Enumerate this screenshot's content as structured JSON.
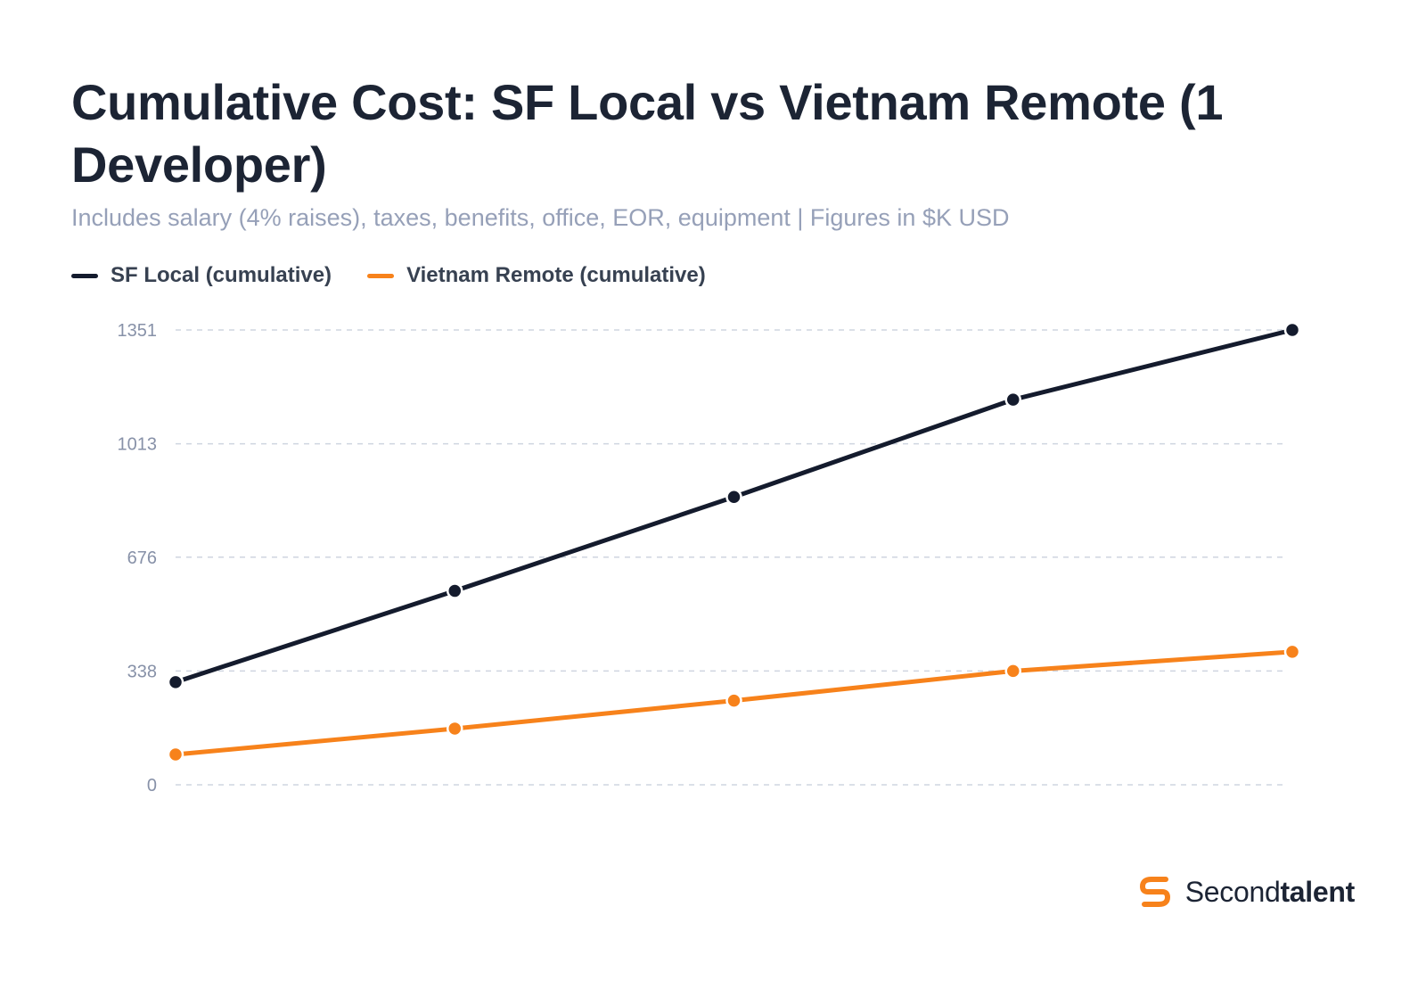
{
  "colors": {
    "sf": "#141b2d",
    "vn": "#f7821b",
    "grid": "#cfd5e0",
    "tick": "#8791a8"
  },
  "brand": {
    "prefix": "Second",
    "suffix": "talent",
    "icon": "secondtalent-logo-icon"
  },
  "chart_data": {
    "type": "line",
    "title": "Cumulative Cost: SF Local vs Vietnam Remote (1 Developer)",
    "subtitle": "Includes salary (4% raises), taxes, benefits, office, EOR, equipment | Figures in $K USD",
    "xlabel": "",
    "ylabel": "",
    "x": [
      1,
      2,
      3,
      4,
      5
    ],
    "yticks": [
      "0",
      "338",
      "676",
      "1013",
      "1351"
    ],
    "ytick_values": [
      0,
      338,
      676,
      1013,
      1351
    ],
    "ylim": [
      0,
      1351
    ],
    "grid": true,
    "legend_position": "top-left",
    "series": [
      {
        "name": "SF Local (cumulative)",
        "color": "#141b2d",
        "values": [
          305,
          576,
          855,
          1144,
          1351
        ]
      },
      {
        "name": "Vietnam Remote (cumulative)",
        "color": "#f7821b",
        "values": [
          90,
          167,
          250,
          338,
          395
        ]
      }
    ]
  }
}
